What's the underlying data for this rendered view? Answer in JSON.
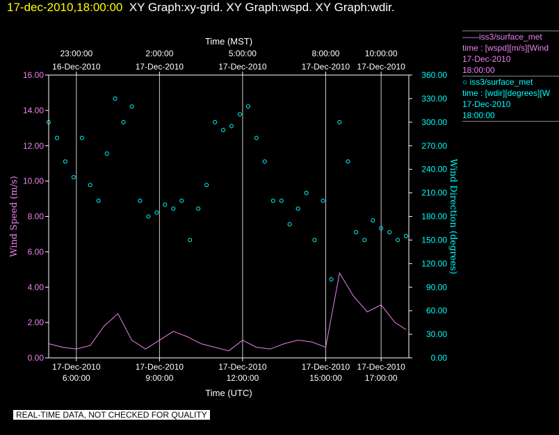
{
  "header": {
    "timestamp": "17-dec-2010,18:00:00",
    "graph_titles": "XY Graph:xy-grid.  XY Graph:wspd.  XY Graph:wdir."
  },
  "legend": {
    "wspd": {
      "line1": "——iss3/surface_met",
      "line2": "time : [wspd][m/s][Wind",
      "line3": "17-Dec-2010",
      "line4": "18:00:00"
    },
    "wdir": {
      "line1": "○ iss3/surface_met",
      "line2": "time : [wdir][degrees][W",
      "line3": "17-Dec-2010",
      "line4": "18:00:00"
    }
  },
  "footer": "REAL-TIME DATA, NOT CHECKED FOR QUALITY",
  "colors": {
    "wspd": "#ee82ee",
    "wdir": "#00ffff",
    "header_timestamp": "#ffff00",
    "background": "#000000"
  },
  "chart_data": {
    "type": "line",
    "xlabel_bottom": "Time (UTC)",
    "xlabel_top": "Time (MST)",
    "ylabel_left": "Wind Speed (m/s)",
    "ylabel_right": "Wind Direction (degrees)",
    "x_range_utc": [
      "17-Dec-2010 05:00",
      "17-Dec-2010 18:00"
    ],
    "ylim_left": [
      0,
      16
    ],
    "ylim_right": [
      0,
      360
    ],
    "yticks_left": [
      "16.00",
      "14.00",
      "12.00",
      "10.00",
      "8.00",
      "6.00",
      "4.00",
      "2.00",
      "0.00"
    ],
    "yticks_right": [
      "360.00",
      "330.00",
      "300.00",
      "270.00",
      "240.00",
      "210.00",
      "180.00",
      "150.00",
      "120.00",
      "90.00",
      "60.00",
      "30.00",
      "0.00"
    ],
    "xticks_bottom": [
      {
        "hour": 6,
        "date": "17-Dec-2010",
        "time": "6:00:00"
      },
      {
        "hour": 9,
        "date": "17-Dec-2010",
        "time": "9:00:00"
      },
      {
        "hour": 12,
        "date": "17-Dec-2010",
        "time": "12:00:00"
      },
      {
        "hour": 15,
        "date": "17-Dec-2010",
        "time": "15:00:00"
      },
      {
        "hour": 17,
        "date": "17-Dec-2010",
        "time": "17:00:00"
      }
    ],
    "xticks_top": [
      {
        "hour": 6,
        "time": "23:00:00",
        "date": "16-Dec-2010"
      },
      {
        "hour": 9,
        "time": "2:00:00",
        "date": "17-Dec-2010"
      },
      {
        "hour": 12,
        "time": "5:00:00",
        "date": "17-Dec-2010"
      },
      {
        "hour": 15,
        "time": "8:00:00",
        "date": "17-Dec-2010"
      },
      {
        "hour": 17,
        "time": "10:00:00",
        "date": "17-Dec-2010"
      }
    ],
    "grid": true,
    "series": [
      {
        "name": "iss3/surface_met time : [wspd][m/s][Wind",
        "style": "line",
        "x_hours_utc": [
          5.0,
          5.5,
          6.0,
          6.5,
          7.0,
          7.5,
          8.0,
          8.5,
          9.0,
          9.5,
          10.0,
          10.5,
          11.0,
          11.5,
          12.0,
          12.5,
          13.0,
          13.5,
          14.0,
          14.5,
          15.0,
          15.5,
          16.0,
          16.5,
          17.0,
          17.5,
          17.9
        ],
        "values": [
          0.8,
          0.6,
          0.5,
          0.7,
          1.8,
          2.5,
          1.0,
          0.5,
          1.0,
          1.5,
          1.2,
          0.8,
          0.6,
          0.4,
          1.0,
          0.6,
          0.5,
          0.8,
          1.0,
          0.9,
          0.6,
          4.8,
          3.5,
          2.6,
          3.0,
          2.0,
          1.6
        ]
      },
      {
        "name": "iss3/surface_met time : [wdir][degrees][W",
        "style": "circles",
        "x_hours_utc": [
          5.0,
          5.3,
          5.6,
          5.9,
          6.2,
          6.5,
          6.8,
          7.1,
          7.4,
          7.7,
          8.0,
          8.3,
          8.6,
          8.9,
          9.2,
          9.5,
          9.8,
          10.1,
          10.4,
          10.7,
          11.0,
          11.3,
          11.6,
          11.9,
          12.2,
          12.5,
          12.8,
          13.1,
          13.4,
          13.7,
          14.0,
          14.3,
          14.6,
          14.9,
          15.2,
          15.5,
          15.8,
          16.1,
          16.4,
          16.7,
          17.0,
          17.3,
          17.6,
          17.9
        ],
        "values": [
          300,
          280,
          250,
          230,
          280,
          220,
          200,
          260,
          330,
          300,
          320,
          200,
          180,
          185,
          195,
          190,
          200,
          150,
          190,
          220,
          300,
          290,
          295,
          310,
          320,
          280,
          250,
          200,
          200,
          170,
          190,
          210,
          150,
          200,
          100,
          300,
          250,
          160,
          150,
          175,
          165,
          160,
          150,
          155
        ]
      }
    ]
  }
}
